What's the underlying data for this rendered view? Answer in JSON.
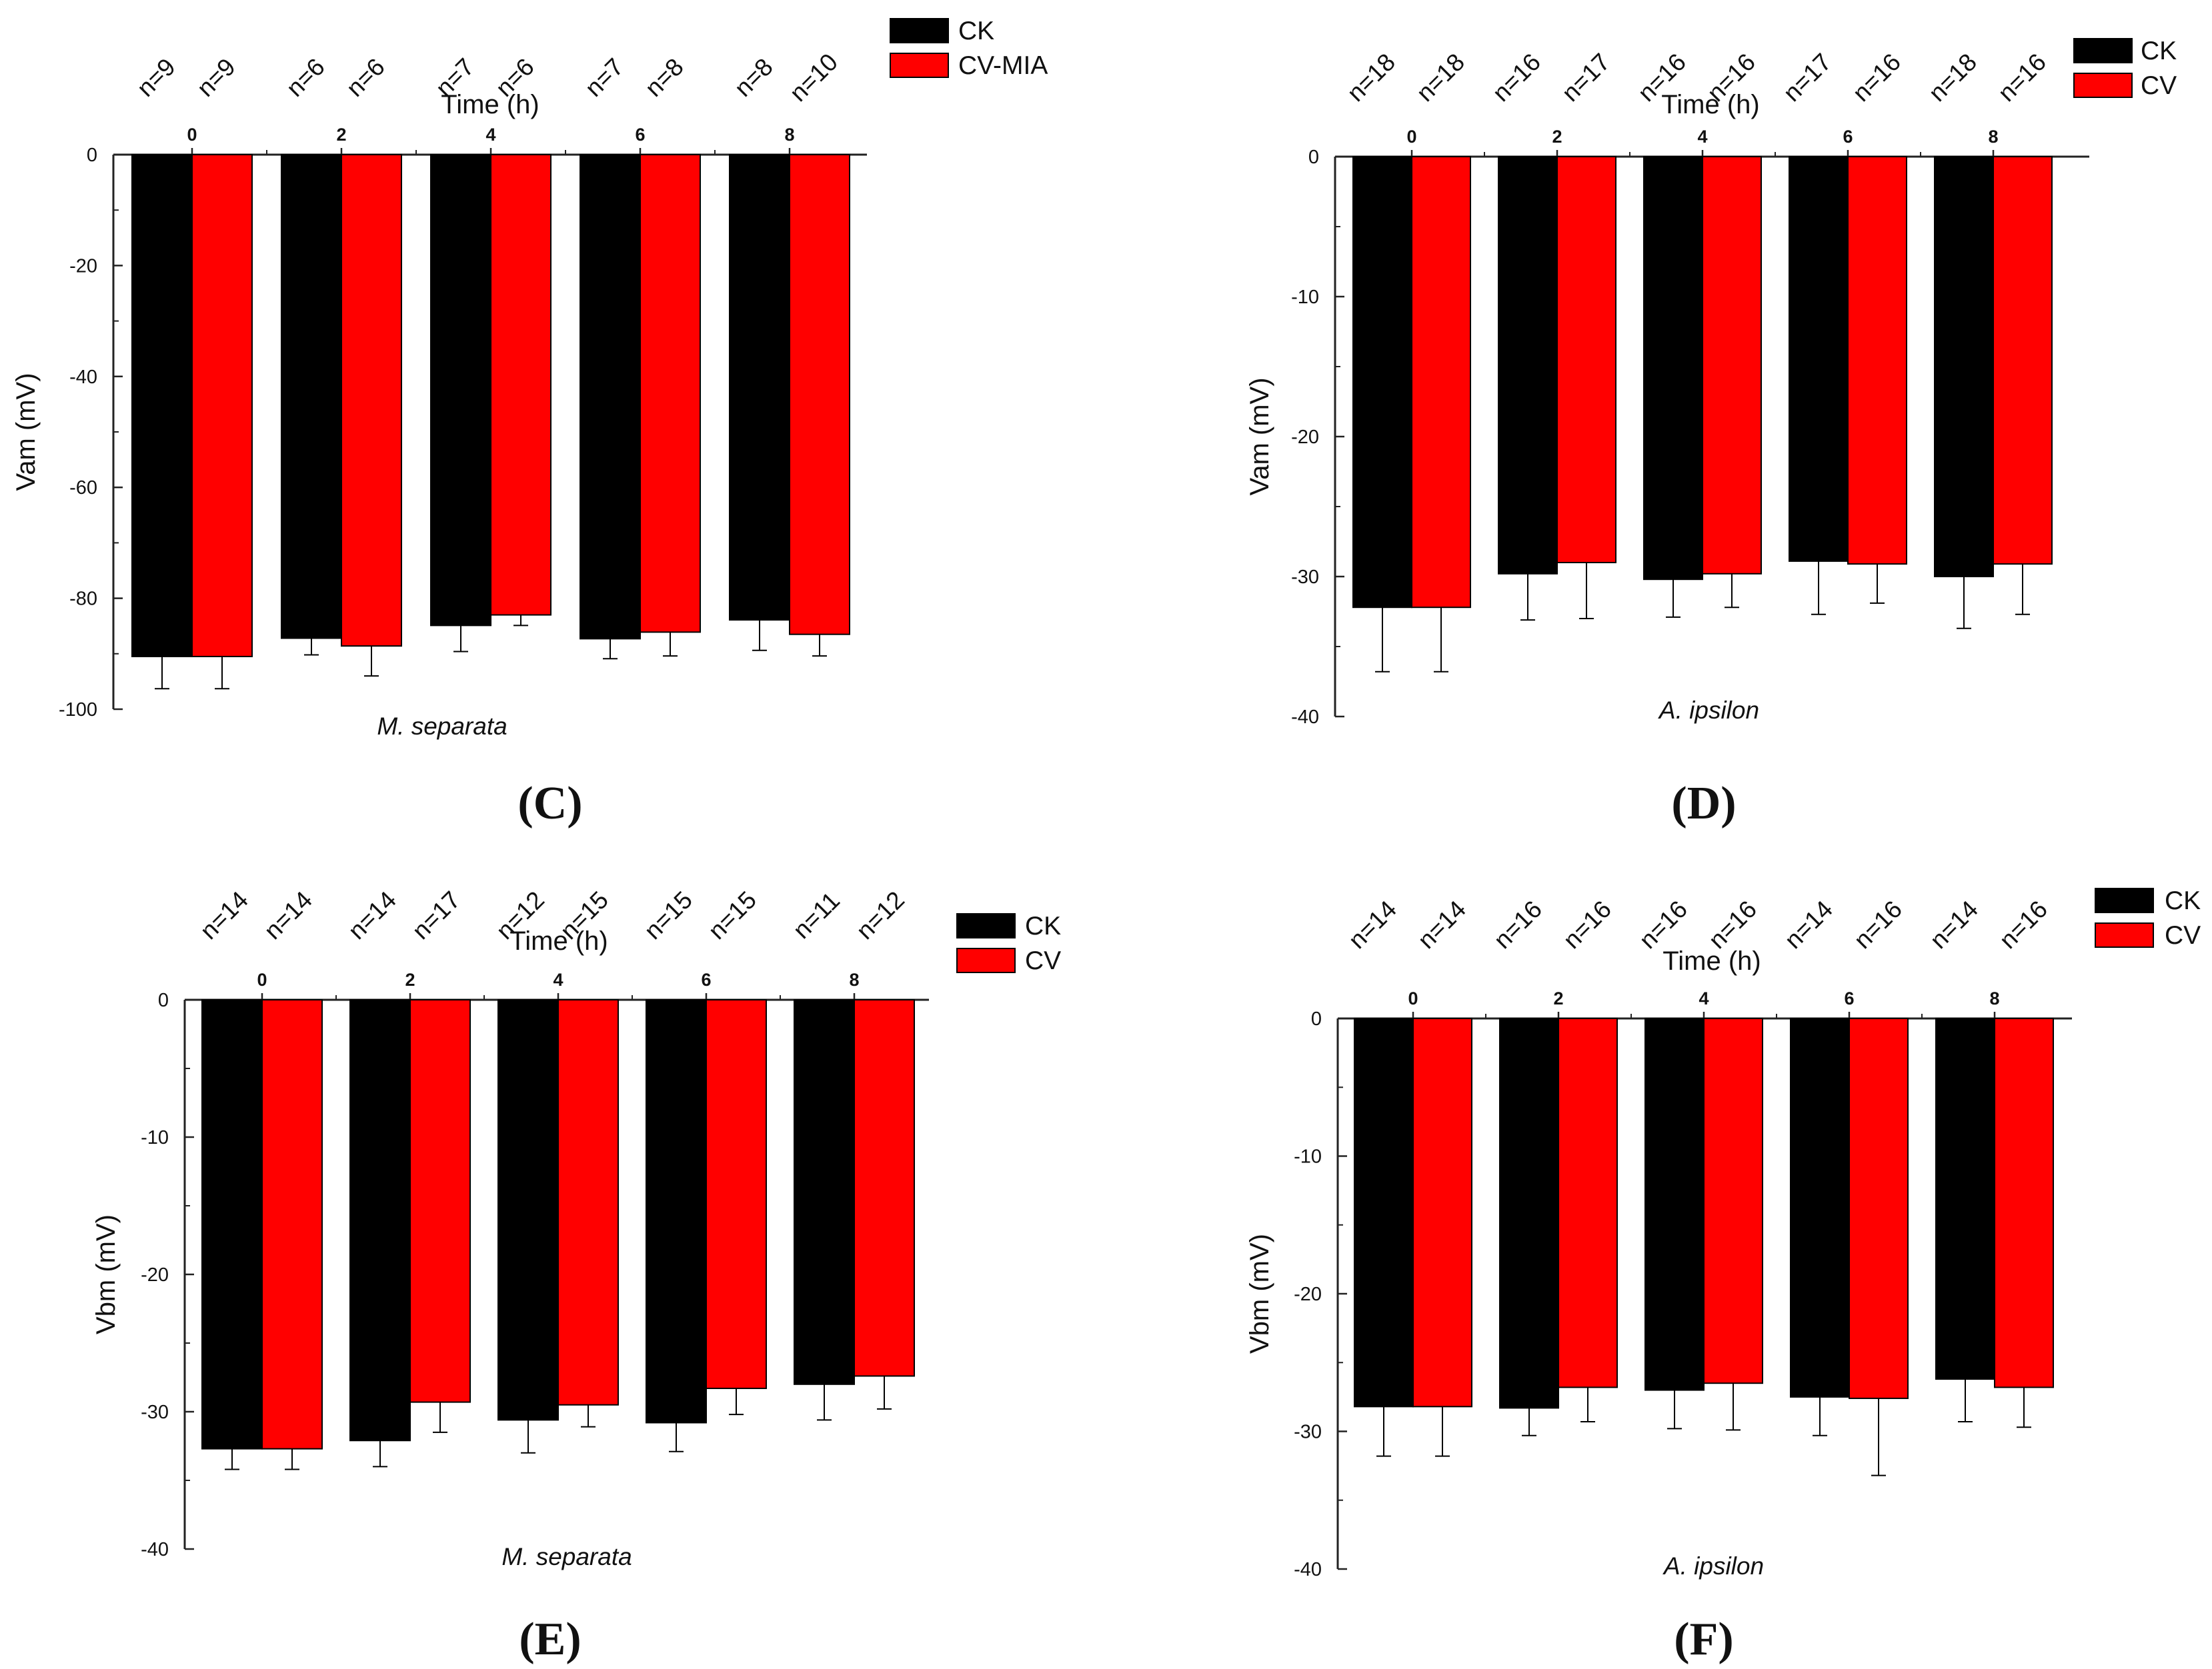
{
  "colors": {
    "ck": "#000000",
    "treatment": "#ff0000",
    "axis": "#222222"
  },
  "chart_data": [
    {
      "type": "bar",
      "panel": "(C)",
      "title": "M. separata",
      "xlabel": "Time (h)",
      "ylabel": "Vam (mV)",
      "categories": [
        "0",
        "2",
        "4",
        "6",
        "8"
      ],
      "ylim": [
        -100,
        0
      ],
      "yticks": [
        0,
        -20,
        -40,
        -60,
        -80,
        -100
      ],
      "legend": [
        "CK",
        "CV-MIA"
      ],
      "legend_position": "top-right",
      "series": [
        {
          "name": "CK",
          "values": [
            -90.5,
            -87.2,
            -84.9,
            -87.3,
            -83.9
          ],
          "errors": [
            5.8,
            3.0,
            4.7,
            3.6,
            5.5
          ],
          "n": [
            "n=9",
            "n=6",
            "n=7",
            "n=7",
            "n=8"
          ]
        },
        {
          "name": "CV-MIA",
          "values": [
            -90.5,
            -88.6,
            -83.0,
            -86.1,
            -86.5
          ],
          "errors": [
            5.8,
            5.4,
            1.9,
            4.3,
            3.9
          ],
          "n": [
            "n=9",
            "n=6",
            "n=6",
            "n=8",
            "n=10"
          ]
        }
      ]
    },
    {
      "type": "bar",
      "panel": "(D)",
      "title": "A. ipsilon",
      "xlabel": "Time (h)",
      "ylabel": "Vam (mV)",
      "categories": [
        "0",
        "2",
        "4",
        "6",
        "8"
      ],
      "ylim": [
        -40,
        0
      ],
      "yticks": [
        0,
        -10,
        -20,
        -30,
        -40
      ],
      "legend": [
        "CK",
        "CV"
      ],
      "legend_position": "top-right",
      "series": [
        {
          "name": "CK",
          "values": [
            -32.2,
            -29.8,
            -30.2,
            -28.9,
            -30.0
          ],
          "errors": [
            4.6,
            3.3,
            2.7,
            3.8,
            3.7
          ],
          "n": [
            "n=18",
            "n=16",
            "n=16",
            "n=17",
            "n=18"
          ]
        },
        {
          "name": "CV",
          "values": [
            -32.2,
            -29.0,
            -29.8,
            -29.1,
            -29.1
          ],
          "errors": [
            4.6,
            4.0,
            2.4,
            2.8,
            3.6
          ],
          "n": [
            "n=18",
            "n=17",
            "n=16",
            "n=16",
            "n=16"
          ]
        }
      ]
    },
    {
      "type": "bar",
      "panel": "(E)",
      "title": "M. separata",
      "xlabel": "Time (h)",
      "ylabel": "Vbm (mV)",
      "categories": [
        "0",
        "2",
        "4",
        "6",
        "8"
      ],
      "ylim": [
        -40,
        0
      ],
      "yticks": [
        0,
        -10,
        -20,
        -30,
        -40
      ],
      "legend": [
        "CK",
        "CV"
      ],
      "legend_position": "top-right",
      "series": [
        {
          "name": "CK",
          "values": [
            -32.7,
            -32.1,
            -30.6,
            -30.8,
            -28.0
          ],
          "errors": [
            1.5,
            1.9,
            2.4,
            2.1,
            2.6
          ],
          "n": [
            "n=14",
            "n=14",
            "n=12",
            "n=15",
            "n=11"
          ]
        },
        {
          "name": "CV",
          "values": [
            -32.7,
            -29.3,
            -29.5,
            -28.3,
            -27.4
          ],
          "errors": [
            1.5,
            2.2,
            1.6,
            1.9,
            2.4
          ],
          "n": [
            "n=14",
            "n=17",
            "n=15",
            "n=15",
            "n=12"
          ]
        }
      ]
    },
    {
      "type": "bar",
      "panel": "(F)",
      "title": "A. ipsilon",
      "xlabel": "Time (h)",
      "ylabel": "Vbm (mV)",
      "categories": [
        "0",
        "2",
        "4",
        "6",
        "8"
      ],
      "ylim": [
        -40,
        0
      ],
      "yticks": [
        0,
        -10,
        -20,
        -30,
        -40
      ],
      "legend": [
        "CK",
        "CV"
      ],
      "legend_position": "top-right",
      "series": [
        {
          "name": "CK",
          "values": [
            -28.2,
            -28.3,
            -27.0,
            -27.5,
            -26.2
          ],
          "errors": [
            3.6,
            2.0,
            2.8,
            2.8,
            3.1
          ],
          "n": [
            "n=14",
            "n=16",
            "n=16",
            "n=14",
            "n=14"
          ]
        },
        {
          "name": "CV",
          "values": [
            -28.2,
            -26.8,
            -26.5,
            -27.6,
            -26.8
          ],
          "errors": [
            3.6,
            2.5,
            3.4,
            5.6,
            2.9
          ],
          "n": [
            "n=14",
            "n=16",
            "n=16",
            "n=16",
            "n=16"
          ]
        }
      ]
    }
  ]
}
